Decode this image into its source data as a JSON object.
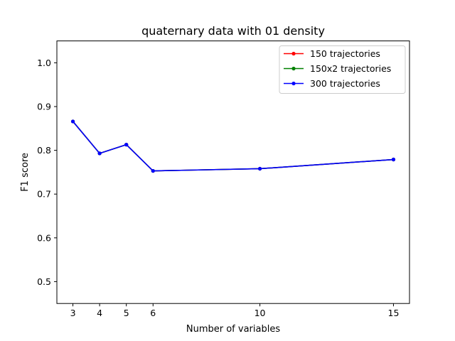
{
  "chart_data": {
    "type": "line",
    "title": "quaternary data with 01 density",
    "xlabel": "Number of variables",
    "ylabel": "F1 score",
    "x": [
      3,
      4,
      5,
      6,
      10,
      15
    ],
    "xticks": [
      3,
      4,
      5,
      6,
      10,
      15
    ],
    "xlim": [
      2.4,
      15.6
    ],
    "ylim": [
      0.45,
      1.05
    ],
    "yticks": [
      0.5,
      0.6,
      0.7,
      0.8,
      0.9,
      1.0
    ],
    "ytick_labels": [
      "0.5",
      "0.6",
      "0.7",
      "0.8",
      "0.9",
      "1.0"
    ],
    "grid": false,
    "legend_position": "top-right",
    "series": [
      {
        "name": "150 trajectories",
        "color": "#ff0000",
        "values": [
          0.866,
          0.793,
          0.813,
          0.753,
          0.758,
          0.779
        ]
      },
      {
        "name": "150x2 trajectories",
        "color": "#008000",
        "values": [
          0.866,
          0.793,
          0.813,
          0.753,
          0.758,
          0.779
        ]
      },
      {
        "name": "300 trajectories",
        "color": "#0000ff",
        "values": [
          0.866,
          0.793,
          0.813,
          0.753,
          0.758,
          0.779
        ]
      }
    ]
  }
}
